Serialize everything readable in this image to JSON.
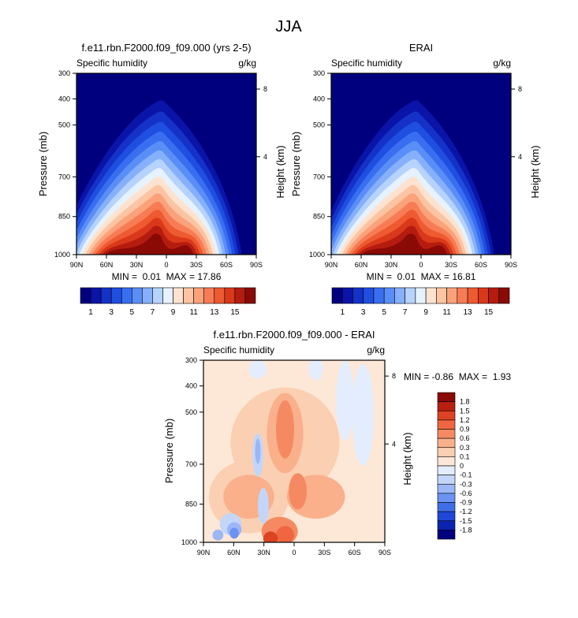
{
  "figure": {
    "title": "JJA"
  },
  "colors": {
    "abs": [
      "#00007f",
      "#0a14a8",
      "#1432c8",
      "#1f4fe0",
      "#3a6ef0",
      "#5a8ef7",
      "#86b0fb",
      "#b6d3fd",
      "#e6f2ff",
      "#fde3cf",
      "#fcc4a2",
      "#fba27b",
      "#f77c55",
      "#ee5a31",
      "#d9381a",
      "#b51c0f",
      "#8a0a06"
    ],
    "diff": [
      "#00007f",
      "#0a23b0",
      "#1f48d8",
      "#3f6fe8",
      "#6b93f2",
      "#9bb7f6",
      "#c3d6fa",
      "#e3edfd",
      "#fde7d6",
      "#fbcfb1",
      "#f9b08b",
      "#f58a62",
      "#ef6640",
      "#dd4222",
      "#b81f0f",
      "#8a0a06"
    ]
  },
  "chart_data": [
    {
      "type": "heatmap",
      "id": "model",
      "title": "f.e11.rbn.F2000.f09_f09.000 (yrs 2-5)",
      "left_label": "Specific humidity",
      "right_label": "g/kg",
      "ylabel": "Pressure (mb)",
      "y2label": "Height (km)",
      "x_ticks": [
        "90N",
        "60N",
        "30N",
        "0",
        "30S",
        "60S",
        "90S"
      ],
      "y_ticks": [
        "300",
        "400",
        "500",
        "700",
        "850",
        "1000"
      ],
      "y2_ticks": [
        "8",
        "4"
      ],
      "stats_text": "MIN =  0.01  MAX = 17.86",
      "min": 0.01,
      "max": 17.86,
      "legend_labels": [
        "1",
        "3",
        "5",
        "7",
        "9",
        "11",
        "13",
        "15"
      ]
    },
    {
      "type": "heatmap",
      "id": "obs",
      "title": "ERAI",
      "left_label": "Specific humidity",
      "right_label": "g/kg",
      "ylabel": "Pressure (mb)",
      "y2label": "Height (km)",
      "x_ticks": [
        "90N",
        "60N",
        "30N",
        "0",
        "30S",
        "60S",
        "90S"
      ],
      "y_ticks": [
        "300",
        "400",
        "500",
        "700",
        "850",
        "1000"
      ],
      "y2_ticks": [
        "8",
        "4"
      ],
      "stats_text": "MIN =  0.01  MAX = 16.81",
      "min": 0.01,
      "max": 16.81,
      "legend_labels": [
        "1",
        "3",
        "5",
        "7",
        "9",
        "11",
        "13",
        "15"
      ]
    },
    {
      "type": "heatmap",
      "id": "diff",
      "title": "f.e11.rbn.F2000.f09_f09.000 - ERAI",
      "left_label": "Specific humidity",
      "right_label": "g/kg",
      "ylabel": "Pressure (mb)",
      "y2label": "Height (km)",
      "x_ticks": [
        "90N",
        "60N",
        "30N",
        "0",
        "30S",
        "60S",
        "90S"
      ],
      "y_ticks": [
        "300",
        "400",
        "500",
        "700",
        "850",
        "1000"
      ],
      "y2_ticks": [
        "8",
        "4"
      ],
      "stats_text": "MIN = -0.86  MAX =  1.93",
      "min": -0.86,
      "max": 1.93,
      "legend_labels": [
        "1.8",
        "1.5",
        "1.2",
        "0.9",
        "0.6",
        "0.3",
        "0.1",
        "0",
        "-0.1",
        "-0.3",
        "-0.6",
        "-0.9",
        "-1.2",
        "-1.5",
        "-1.8"
      ]
    }
  ]
}
